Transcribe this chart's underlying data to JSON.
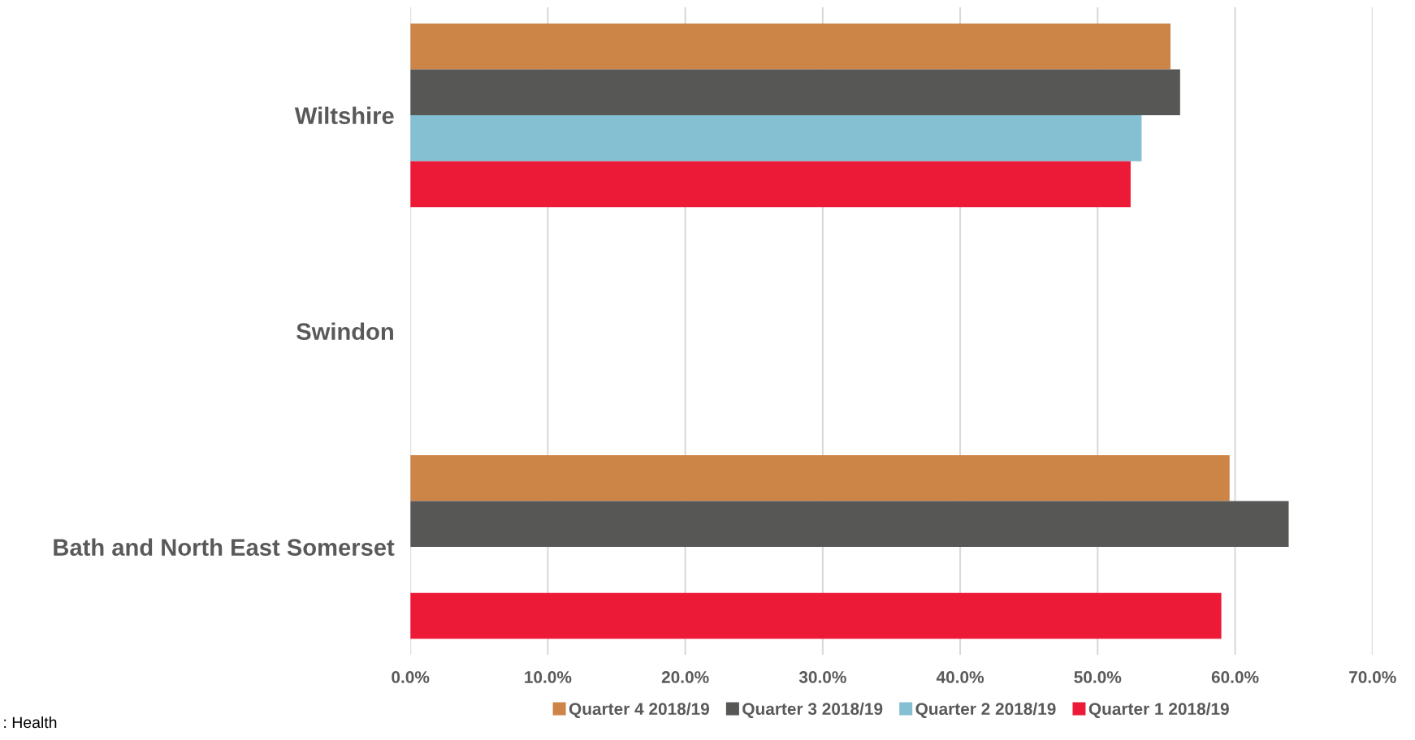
{
  "chart_data": {
    "type": "bar",
    "orientation": "horizontal",
    "categories": [
      "Wiltshire",
      "Swindon",
      "Bath and North East Somerset"
    ],
    "series": [
      {
        "name": "Quarter 4 2018/19",
        "color": "#cd8447",
        "values": [
          55.3,
          null,
          59.6
        ]
      },
      {
        "name": "Quarter 3 2018/19",
        "color": "#575756",
        "values": [
          56.0,
          null,
          63.9
        ]
      },
      {
        "name": "Quarter 2 2018/19",
        "color": "#84c0d1",
        "values": [
          53.2,
          null,
          null
        ]
      },
      {
        "name": "Quarter 1 2018/19",
        "color": "#ed1a37",
        "values": [
          52.4,
          null,
          59.0
        ]
      }
    ],
    "xlim": [
      0,
      70
    ],
    "xticks": [
      {
        "value": 0,
        "label": "0.0%"
      },
      {
        "value": 10,
        "label": "10.0%"
      },
      {
        "value": 20,
        "label": "20.0%"
      },
      {
        "value": 30,
        "label": "30.0%"
      },
      {
        "value": 40,
        "label": "40.0%"
      },
      {
        "value": 50,
        "label": "50.0%"
      },
      {
        "value": 60,
        "label": "60.0%"
      },
      {
        "value": 70,
        "label": "70.0%"
      }
    ],
    "grid": "x",
    "legend": "bottom",
    "annotations": [
      ": Health"
    ]
  }
}
